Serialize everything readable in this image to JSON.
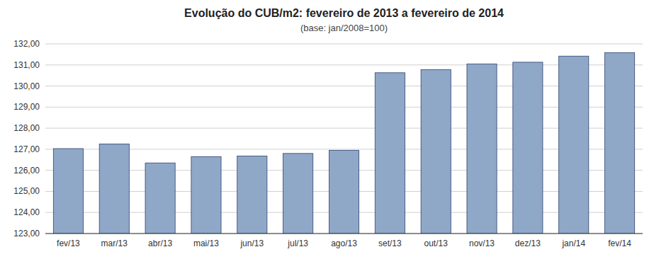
{
  "chart_data": {
    "type": "bar",
    "title": "Evolução do CUB/m2: fevereiro de 2013 a fevereiro de 2014",
    "subtitle": "(base: jan/2008=100)",
    "categories": [
      "fev/13",
      "mar/13",
      "abr/13",
      "mai/13",
      "jun/13",
      "jul/13",
      "ago/13",
      "set/13",
      "out/13",
      "nov/13",
      "dez/13",
      "jan/14",
      "fev/14"
    ],
    "values": [
      127.03,
      127.25,
      126.35,
      126.65,
      126.68,
      126.8,
      126.95,
      130.63,
      130.78,
      131.05,
      131.13,
      131.42,
      131.58
    ],
    "color": "#8FA8C8",
    "ylim": [
      123.0,
      132.0
    ],
    "yticks": [
      {
        "value": 123.0,
        "label": "123,00"
      },
      {
        "value": 124.0,
        "label": "124,00"
      },
      {
        "value": 125.0,
        "label": "125,00"
      },
      {
        "value": 126.0,
        "label": "126,00"
      },
      {
        "value": 127.0,
        "label": "127,00"
      },
      {
        "value": 128.0,
        "label": "128,00"
      },
      {
        "value": 129.0,
        "label": "129,00"
      },
      {
        "value": 130.0,
        "label": "130,00"
      },
      {
        "value": 131.0,
        "label": "131,00"
      },
      {
        "value": 132.0,
        "label": "132,00"
      }
    ],
    "grid": true
  }
}
